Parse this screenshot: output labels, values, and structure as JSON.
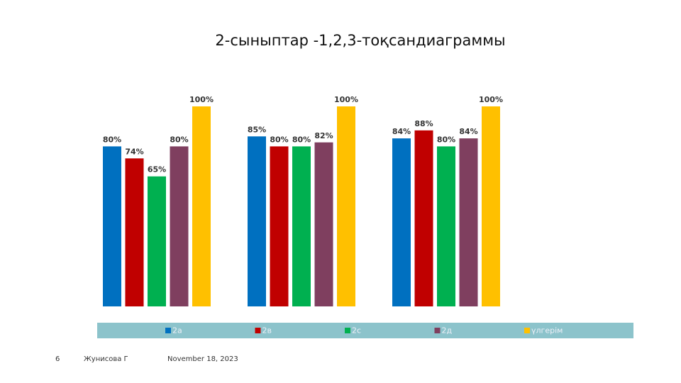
{
  "chart_data": {
    "type": "bar",
    "title": "2-сыныптар -1,2,3-тоқсандиаграммы",
    "categories": [
      null,
      null,
      null
    ],
    "series": [
      {
        "name": "2а",
        "color": "#0070c0",
        "values": [
          80,
          85,
          84
        ],
        "value_labels": [
          "80%",
          "85%",
          "84%"
        ]
      },
      {
        "name": "2в",
        "color": "#c00000",
        "values": [
          74,
          80,
          88
        ],
        "value_labels": [
          "74%",
          "80%",
          "88%"
        ]
      },
      {
        "name": "2с",
        "color": "#00b050",
        "values": [
          65,
          80,
          80
        ],
        "value_labels": [
          "65%",
          "80%",
          "80%"
        ]
      },
      {
        "name": "2д",
        "color": "#7f3f5f",
        "values": [
          80,
          82,
          84
        ],
        "value_labels": [
          "80%",
          "82%",
          "84%"
        ]
      },
      {
        "name": "үлгерім",
        "color": "#ffc000",
        "values": [
          100,
          100,
          100
        ],
        "value_labels": [
          "100%",
          "100%",
          "100%"
        ]
      }
    ],
    "ylim": [
      0,
      100
    ],
    "legend": "bottom",
    "legend_color": "#8cc3cb"
  },
  "footer": {
    "page": "6",
    "author": "Жунисова Г",
    "date": "November 18, 2023"
  }
}
